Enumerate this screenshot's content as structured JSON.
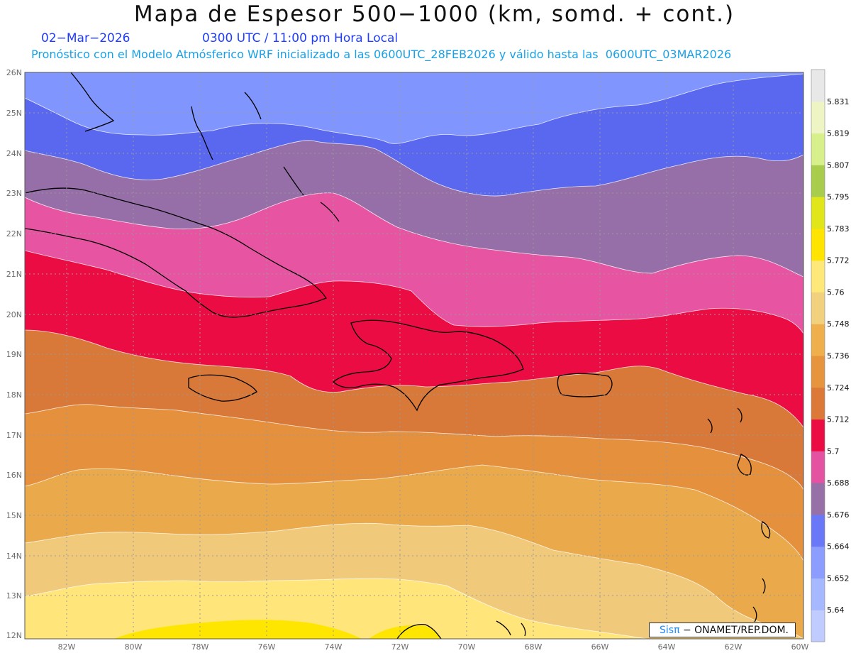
{
  "title": "Mapa de Espesor 500−1000 (km, somd. + cont.)",
  "date_label": "02−Mar−2026",
  "time_label": "0300 UTC / 11:00 pm Hora Local",
  "forecast_label": "Pronóstico con el Modelo Atmósferico WRF inicializado a las 0600UTC_28FEB2026 y válido hasta las  0600UTC_03MAR2026",
  "credit": {
    "logo": "Sisπ",
    "text": "− ONAMET/REP.DOM."
  },
  "axes": {
    "lat_ticks": [
      "26N",
      "25N",
      "24N",
      "23N",
      "22N",
      "21N",
      "20N",
      "19N",
      "18N",
      "17N",
      "16N",
      "15N",
      "14N",
      "13N",
      "12N"
    ],
    "lon_ticks": [
      "82W",
      "80W",
      "78W",
      "76W",
      "74W",
      "72W",
      "70W",
      "68W",
      "66W",
      "64W",
      "62W",
      "60W"
    ],
    "lat_range": [
      12,
      26
    ],
    "lon_range": [
      -83.2,
      -60
    ]
  },
  "colorbar": {
    "levels": [
      "5.64",
      "5.652",
      "5.664",
      "5.676",
      "5.688",
      "5.7",
      "5.712",
      "5.724",
      "5.736",
      "5.748",
      "5.76",
      "5.772",
      "5.783",
      "5.795",
      "5.807",
      "5.819",
      "5.831"
    ],
    "colors": [
      "#c0ccff",
      "#a6b8ff",
      "#8c9dff",
      "#6a78f8",
      "#9870a8",
      "#e453a2",
      "#ec0c44",
      "#dc7938",
      "#e7943e",
      "#eeaf4c",
      "#f2d17e",
      "#ffe87a",
      "#ffe400",
      "#e0e61a",
      "#a8cc4c",
      "#d8f08c",
      "#eef4c4",
      "#e8e8e8"
    ]
  },
  "thickness_bands": [
    {
      "value": "5.652",
      "color": "#8095fd"
    },
    {
      "value": "5.664",
      "color": "#5a68f0"
    },
    {
      "value": "5.676",
      "color": "#976fa8"
    },
    {
      "value": "5.688",
      "color": "#e654a2"
    },
    {
      "value": "5.7",
      "color": "#ec0c44"
    },
    {
      "value": "5.712",
      "color": "#d8793a"
    },
    {
      "value": "5.724",
      "color": "#e5903c"
    },
    {
      "value": "5.736",
      "color": "#eaa94a"
    },
    {
      "value": "5.748",
      "color": "#f0ca7a"
    },
    {
      "value": "5.76",
      "color": "#ffe57a"
    },
    {
      "value": "5.772",
      "color": "#ffe600"
    }
  ]
}
